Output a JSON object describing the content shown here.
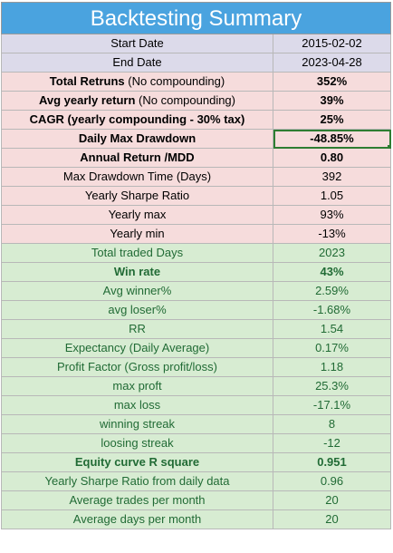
{
  "title": "Backtesting Summary",
  "rows": [
    {
      "label": "Start Date",
      "value": "2015-02-02",
      "color": "lav",
      "bold": false
    },
    {
      "label": "End Date",
      "value": "2023-04-28",
      "color": "lav",
      "bold": false
    },
    {
      "label": "Total Retruns",
      "suffix": " (No compounding)",
      "value": "352%",
      "color": "pink",
      "bold": true
    },
    {
      "label": "Avg yearly return",
      "suffix": " (No compounding)",
      "value": "39%",
      "color": "pink",
      "bold": true
    },
    {
      "label": "CAGR (yearly compounding - 30% tax)",
      "value": "25%",
      "color": "pink",
      "bold": true
    },
    {
      "label": "Daily Max Drawdown",
      "value": "-48.85%",
      "color": "pink",
      "bold": true,
      "selected": true
    },
    {
      "label": "Annual Return /MDD",
      "value": "0.80",
      "color": "pink",
      "bold": true
    },
    {
      "label": "Max Drawdown Time (Days)",
      "value": "392",
      "color": "pink",
      "bold": false
    },
    {
      "label": "Yearly Sharpe Ratio",
      "value": "1.05",
      "color": "pink",
      "bold": false
    },
    {
      "label": "Yearly max",
      "value": "93%",
      "color": "pink",
      "bold": false
    },
    {
      "label": "Yearly min",
      "value": "-13%",
      "color": "pink",
      "bold": false
    },
    {
      "label": "Total traded Days",
      "value": "2023",
      "color": "green",
      "bold": false
    },
    {
      "label": "Win rate",
      "value": "43%",
      "color": "green",
      "bold": true
    },
    {
      "label": "Avg winner%",
      "value": "2.59%",
      "color": "green",
      "bold": false
    },
    {
      "label": "avg loser%",
      "value": "-1.68%",
      "color": "green",
      "bold": false
    },
    {
      "label": "RR",
      "value": "1.54",
      "color": "green",
      "bold": false
    },
    {
      "label": "Expectancy (Daily Average)",
      "value": "0.17%",
      "color": "green",
      "bold": false
    },
    {
      "label": "Profit Factor (Gross profit/loss)",
      "value": "1.18",
      "color": "green",
      "bold": false
    },
    {
      "label": "max proft",
      "value": "25.3%",
      "color": "green",
      "bold": false
    },
    {
      "label": "max loss",
      "value": "-17.1%",
      "color": "green",
      "bold": false
    },
    {
      "label": "winning streak",
      "value": "8",
      "color": "green",
      "bold": false
    },
    {
      "label": "loosing streak",
      "value": "-12",
      "color": "green",
      "bold": false
    },
    {
      "label": "Equity curve R square",
      "value": "0.951",
      "color": "green",
      "bold": true
    },
    {
      "label": "Yearly Sharpe Ratio from daily data",
      "value": "0.96",
      "color": "green",
      "bold": false
    },
    {
      "label": "Average trades per month",
      "value": "20",
      "color": "green",
      "bold": false
    },
    {
      "label": "Average days per month",
      "value": "20",
      "color": "green",
      "bold": false
    }
  ]
}
